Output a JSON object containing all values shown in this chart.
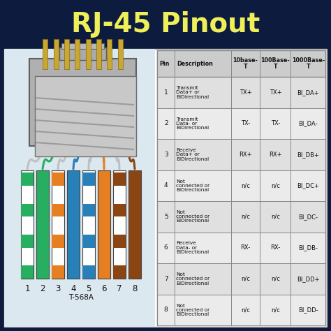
{
  "title": "RJ-45 Pinout",
  "title_color": "#EFEF5A",
  "bg_color": "#0D1B3E",
  "subtitle": "T-568A",
  "wire_colors_main": [
    [
      "#FFFFFF",
      "#27ae60"
    ],
    [
      "#27ae60",
      null
    ],
    [
      "#FFFFFF",
      "#e67e22"
    ],
    [
      "#2980b9",
      null
    ],
    [
      "#FFFFFF",
      "#2980b9"
    ],
    [
      "#e67e22",
      null
    ],
    [
      "#FFFFFF",
      "#8B4513"
    ],
    [
      "#8B4513",
      null
    ]
  ],
  "table_headers_line1": [
    "Pin",
    "Description",
    "10base-",
    "100Base-",
    "1000Base-"
  ],
  "table_headers_line2": [
    "",
    "",
    "T",
    "T",
    "T"
  ],
  "table_data": [
    [
      "1",
      "Transmit\nData+ or\nBiDirectional",
      "TX+",
      "TX+",
      "BI_DA+"
    ],
    [
      "2",
      "Transmit\nData- or\nBiDirectional",
      "TX-",
      "TX-",
      "BI_DA-"
    ],
    [
      "3",
      "Receive\nData+ or\nBiDirectional",
      "RX+",
      "RX+",
      "BI_DB+"
    ],
    [
      "4",
      "Not\nconnected or\nBiDirectional",
      "n/c",
      "n/c",
      "BI_DC+"
    ],
    [
      "5",
      "Not\nconnected or\nBiDirectional",
      "n/c",
      "n/c",
      "BI_DC-"
    ],
    [
      "6",
      "Receive\nData- or\nBiDirectional",
      "RX-",
      "RX-",
      "BI_DB-"
    ],
    [
      "7",
      "Not\nconnected or\nBiDirectional",
      "n/c",
      "n/c",
      "BI_DD+"
    ],
    [
      "8",
      "Not\nconnected or\nBiDirectional",
      "n/c",
      "n/c",
      "BI_DD-"
    ]
  ],
  "connector_color": "#A8A8A8",
  "connector_dark": "#606060",
  "connector_light": "#C8C8C8",
  "gold_color": "#C8A832"
}
